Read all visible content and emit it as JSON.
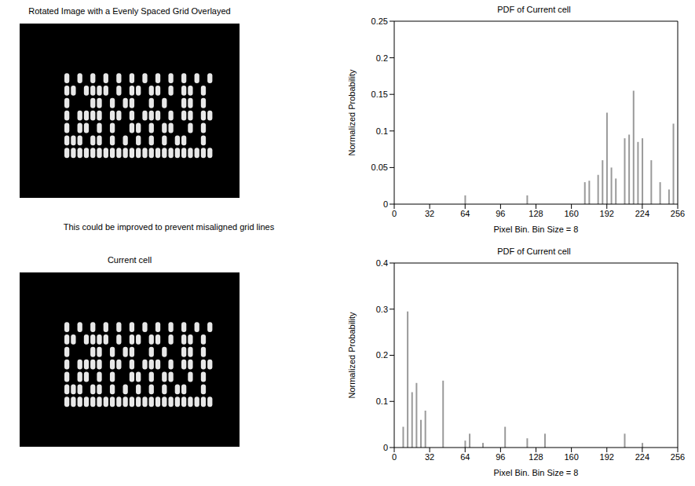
{
  "panels": [
    {
      "title": "Rotated Image with a Evenly Spaced Grid Overlayed"
    },
    {
      "title": "Current cell"
    }
  ],
  "caption": "This could be improved to prevent misaligned grid lines",
  "chart_data": [
    {
      "type": "bar",
      "title": "PDF of Current cell",
      "x_label": "Pixel Bin. Bin Size = 8",
      "y_label": "Normalized Probability",
      "color": "#9a9a9a",
      "x": [
        64,
        120,
        172,
        176,
        184,
        188,
        192,
        196,
        200,
        208,
        212,
        216,
        220,
        224,
        232,
        240,
        248,
        252
      ],
      "values": [
        0.012,
        0.012,
        0.03,
        0.032,
        0.04,
        0.06,
        0.125,
        0.05,
        0.035,
        0.09,
        0.095,
        0.155,
        0.085,
        0.09,
        0.06,
        0.03,
        0.02,
        0.11
      ],
      "xlim": [
        0,
        256
      ],
      "xticks": [
        0,
        32,
        64,
        96,
        128,
        160,
        192,
        224,
        256
      ],
      "ylim": [
        0,
        0.25
      ],
      "yticks": [
        0,
        0.05,
        0.1,
        0.15,
        0.2,
        0.25
      ]
    },
    {
      "type": "bar",
      "title": "PDF of Current cell",
      "x_label": "Pixel Bin. Bin Size = 8",
      "y_label": "Normalized Probability",
      "color": "#9a9a9a",
      "x": [
        8,
        12,
        16,
        20,
        24,
        28,
        44,
        64,
        68,
        80,
        100,
        120,
        136,
        208,
        224
      ],
      "values": [
        0.045,
        0.295,
        0.12,
        0.14,
        0.06,
        0.08,
        0.145,
        0.015,
        0.03,
        0.01,
        0.045,
        0.02,
        0.03,
        0.03,
        0.01
      ],
      "xlim": [
        0,
        256
      ],
      "xticks": [
        0,
        32,
        64,
        96,
        128,
        160,
        192,
        224,
        256
      ],
      "ylim": [
        0,
        0.4
      ],
      "yticks": [
        0,
        0.1,
        0.2,
        0.3,
        0.4
      ]
    }
  ]
}
